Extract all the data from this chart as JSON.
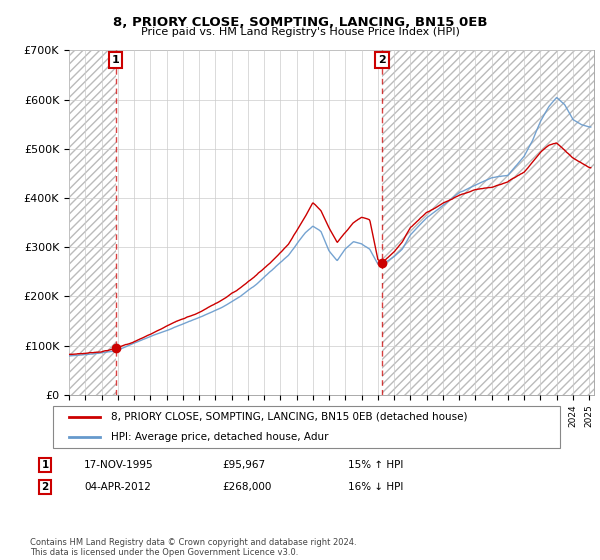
{
  "title1": "8, PRIORY CLOSE, SOMPTING, LANCING, BN15 0EB",
  "title2": "Price paid vs. HM Land Registry's House Price Index (HPI)",
  "ylim": [
    0,
    700000
  ],
  "yticks": [
    0,
    100000,
    200000,
    300000,
    400000,
    500000,
    600000,
    700000
  ],
  "ytick_labels": [
    "£0",
    "£100K",
    "£200K",
    "£300K",
    "£400K",
    "£500K",
    "£600K",
    "£700K"
  ],
  "xmin": 1993,
  "xmax": 2025.3,
  "sale1_date": 1995.88,
  "sale1_price": 95967,
  "sale2_date": 2012.25,
  "sale2_price": 268000,
  "legend1": "8, PRIORY CLOSE, SOMPTING, LANCING, BN15 0EB (detached house)",
  "legend2": "HPI: Average price, detached house, Adur",
  "note1_date": "17-NOV-1995",
  "note1_price": "£95,967",
  "note1_hpi": "15% ↑ HPI",
  "note2_date": "04-APR-2012",
  "note2_price": "£268,000",
  "note2_hpi": "16% ↓ HPI",
  "footer": "Contains HM Land Registry data © Crown copyright and database right 2024.\nThis data is licensed under the Open Government Licence v3.0.",
  "red_color": "#cc0000",
  "blue_color": "#6699cc",
  "hatch_color": "#cccccc"
}
